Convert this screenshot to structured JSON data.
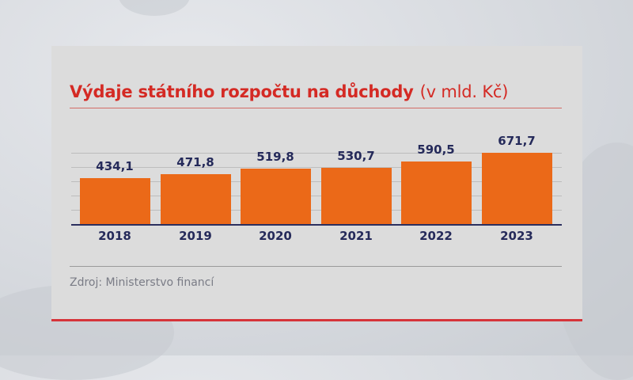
{
  "chart_data": {
    "type": "bar",
    "title": "Výdaje státního rozpočtu na důchody",
    "subtitle": "(v mld. Kč)",
    "xlabel": "",
    "ylabel": "mld. Kč",
    "categories": [
      "2018",
      "2019",
      "2020",
      "2021",
      "2022",
      "2023"
    ],
    "values": [
      434.1,
      471.8,
      519.8,
      530.7,
      590.5,
      671.7
    ],
    "value_labels": [
      "434,1",
      "471,8",
      "519,8",
      "530,7",
      "590,5",
      "671,7"
    ],
    "ylim": [
      0,
      700
    ],
    "grid": true,
    "legend": null,
    "bar_color": "#eb6918",
    "source": "Zdroj: Ministerstvo financí"
  },
  "header": {
    "title": "Výdaje státního rozpočtu na důchody",
    "unit": "(v mld. Kč)"
  },
  "footer": {
    "source": "Zdroj: Ministerstvo financí"
  },
  "colors": {
    "title": "#d42a24",
    "bar": "#eb6918",
    "text": "#252a5a",
    "accent_line": "#d6343a"
  }
}
